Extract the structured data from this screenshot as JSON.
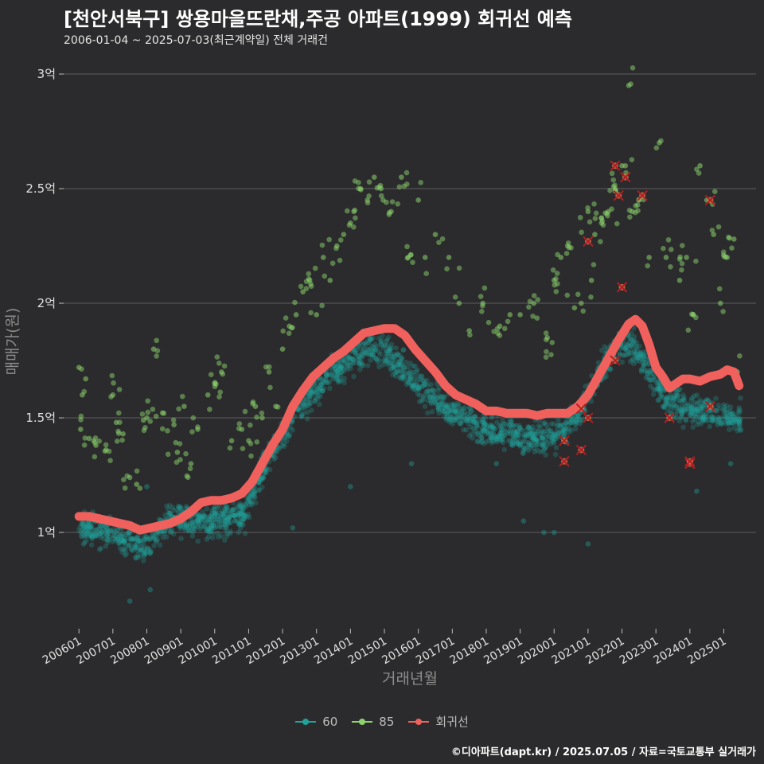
{
  "chart_data": {
    "type": "scatter",
    "title": "[천안서북구] 쌍용마을뜨란채,주공 아파트(1999) 회귀선 예측",
    "subtitle": "2006-01-04 ~ 2025-07-03(최근계약일) 전체 거래건",
    "xlabel": "거래년월",
    "ylabel": "매매가(원)",
    "x_ticks": [
      "200601",
      "200701",
      "200801",
      "200901",
      "201001",
      "201101",
      "201201",
      "201301",
      "201401",
      "201501",
      "201601",
      "201701",
      "201801",
      "201901",
      "202001",
      "202101",
      "202201",
      "202301",
      "202401",
      "202501"
    ],
    "y_ticks": [
      {
        "value": 1.0,
        "label": "1억"
      },
      {
        "value": 1.5,
        "label": "1.5억"
      },
      {
        "value": 2.0,
        "label": "2억"
      },
      {
        "value": 2.5,
        "label": "2.5억"
      },
      {
        "value": 3.0,
        "label": "3억"
      }
    ],
    "x_range": [
      2005.55,
      2025.95
    ],
    "y_range": [
      0.58,
      3.08
    ],
    "y_unit": "억원",
    "grid": true,
    "legend_position": "bottom",
    "series": [
      {
        "name": "60",
        "type": "scatter",
        "color": "#1fa39a",
        "trend": [
          [
            2006.0,
            1.02
          ],
          [
            2007.0,
            1.0
          ],
          [
            2007.9,
            0.93
          ],
          [
            2008.7,
            1.05
          ],
          [
            2009.5,
            1.05
          ],
          [
            2010.3,
            1.05
          ],
          [
            2010.9,
            1.08
          ],
          [
            2011.5,
            1.3
          ],
          [
            2012.5,
            1.55
          ],
          [
            2013.3,
            1.68
          ],
          [
            2014.0,
            1.75
          ],
          [
            2014.5,
            1.8
          ],
          [
            2015.0,
            1.8
          ],
          [
            2015.5,
            1.72
          ],
          [
            2016.2,
            1.62
          ],
          [
            2017.0,
            1.52
          ],
          [
            2018.0,
            1.45
          ],
          [
            2019.0,
            1.42
          ],
          [
            2020.0,
            1.42
          ],
          [
            2020.7,
            1.5
          ],
          [
            2021.3,
            1.68
          ],
          [
            2021.9,
            1.82
          ],
          [
            2022.4,
            1.8
          ],
          [
            2023.0,
            1.65
          ],
          [
            2023.6,
            1.55
          ],
          [
            2024.2,
            1.53
          ],
          [
            2024.8,
            1.52
          ],
          [
            2025.5,
            1.5
          ]
        ],
        "outliers": [
          [
            2007.5,
            0.7
          ],
          [
            2008.1,
            0.75
          ],
          [
            2008.0,
            1.2
          ],
          [
            2012.3,
            1.02
          ],
          [
            2014.0,
            1.2
          ],
          [
            2015.8,
            1.3
          ],
          [
            2018.3,
            1.3
          ],
          [
            2019.1,
            1.05
          ],
          [
            2019.7,
            1.0
          ],
          [
            2020.0,
            1.0
          ],
          [
            2021.0,
            0.95
          ],
          [
            2024.2,
            1.18
          ],
          [
            2025.2,
            1.3
          ]
        ]
      },
      {
        "name": "85",
        "type": "scatter",
        "color": "#8bd36c",
        "points": [
          [
            2006.0,
            1.72
          ],
          [
            2006.05,
            1.45
          ],
          [
            2006.1,
            1.6
          ],
          [
            2006.2,
            1.67
          ],
          [
            2006.3,
            1.41
          ],
          [
            2006.5,
            1.38
          ],
          [
            2006.8,
            1.36
          ],
          [
            2007.0,
            1.6
          ],
          [
            2007.1,
            1.48
          ],
          [
            2007.3,
            1.43
          ],
          [
            2007.5,
            1.24
          ],
          [
            2007.7,
            1.21
          ],
          [
            2007.9,
            1.49
          ],
          [
            2008.0,
            1.5
          ],
          [
            2008.2,
            1.8
          ],
          [
            2008.5,
            1.52
          ],
          [
            2008.8,
            1.47
          ],
          [
            2008.9,
            1.35
          ],
          [
            2009.1,
            1.55
          ],
          [
            2009.3,
            1.3
          ],
          [
            2009.5,
            1.45
          ],
          [
            2009.8,
            1.6
          ],
          [
            2010.0,
            1.65
          ],
          [
            2010.2,
            1.7
          ],
          [
            2010.5,
            1.4
          ],
          [
            2010.8,
            1.45
          ],
          [
            2011.0,
            1.4
          ],
          [
            2011.2,
            1.55
          ],
          [
            2011.4,
            1.5
          ],
          [
            2011.6,
            1.7
          ],
          [
            2011.8,
            1.55
          ],
          [
            2012.0,
            1.8
          ],
          [
            2012.2,
            1.9
          ],
          [
            2012.4,
            1.95
          ],
          [
            2012.6,
            2.05
          ],
          [
            2012.8,
            2.1
          ],
          [
            2013.0,
            1.95
          ],
          [
            2013.2,
            2.2
          ],
          [
            2013.4,
            2.1
          ],
          [
            2013.6,
            2.25
          ],
          [
            2013.8,
            2.3
          ],
          [
            2014.0,
            2.35
          ],
          [
            2014.1,
            2.4
          ],
          [
            2014.3,
            2.5
          ],
          [
            2014.5,
            2.45
          ],
          [
            2014.7,
            2.55
          ],
          [
            2014.9,
            2.5
          ],
          [
            2015.2,
            2.4
          ],
          [
            2015.5,
            2.55
          ],
          [
            2015.7,
            2.2
          ],
          [
            2016.0,
            2.45
          ],
          [
            2016.2,
            2.2
          ],
          [
            2016.5,
            2.3
          ],
          [
            2016.9,
            2.2
          ],
          [
            2017.2,
            2.0
          ],
          [
            2017.5,
            1.88
          ],
          [
            2017.9,
            2.0
          ],
          [
            2018.4,
            1.9
          ],
          [
            2018.7,
            1.95
          ],
          [
            2019.0,
            1.95
          ],
          [
            2019.4,
            2.0
          ],
          [
            2019.8,
            1.85
          ],
          [
            2020.0,
            2.1
          ],
          [
            2020.2,
            2.2
          ],
          [
            2020.4,
            2.25
          ],
          [
            2020.6,
            1.98
          ],
          [
            2020.8,
            2.0
          ],
          [
            2021.0,
            2.4
          ],
          [
            2021.1,
            2.1
          ],
          [
            2021.2,
            2.3
          ],
          [
            2021.4,
            2.35
          ],
          [
            2021.6,
            2.4
          ],
          [
            2021.8,
            2.5
          ],
          [
            2022.0,
            2.6
          ],
          [
            2022.1,
            2.6
          ],
          [
            2022.2,
            2.95
          ],
          [
            2022.3,
            2.4
          ],
          [
            2022.5,
            2.45
          ],
          [
            2022.8,
            2.2
          ],
          [
            2023.1,
            2.7
          ],
          [
            2023.3,
            2.2
          ],
          [
            2023.7,
            2.1
          ],
          [
            2023.9,
            2.2
          ],
          [
            2024.1,
            1.95
          ],
          [
            2024.3,
            2.6
          ],
          [
            2024.5,
            2.45
          ],
          [
            2024.7,
            2.3
          ],
          [
            2024.9,
            2.0
          ],
          [
            2025.1,
            2.2
          ],
          [
            2025.3,
            2.28
          ],
          [
            2025.4,
            1.7
          ]
        ]
      },
      {
        "name": "회귀선",
        "type": "line",
        "color": "#f0605c",
        "points": [
          [
            2006.0,
            1.07
          ],
          [
            2006.3,
            1.07
          ],
          [
            2006.6,
            1.06
          ],
          [
            2006.9,
            1.05
          ],
          [
            2007.2,
            1.04
          ],
          [
            2007.5,
            1.03
          ],
          [
            2007.8,
            1.01
          ],
          [
            2008.1,
            1.02
          ],
          [
            2008.4,
            1.03
          ],
          [
            2008.7,
            1.04
          ],
          [
            2009.0,
            1.06
          ],
          [
            2009.3,
            1.09
          ],
          [
            2009.6,
            1.13
          ],
          [
            2009.9,
            1.14
          ],
          [
            2010.2,
            1.14
          ],
          [
            2010.5,
            1.15
          ],
          [
            2010.8,
            1.17
          ],
          [
            2011.1,
            1.22
          ],
          [
            2011.4,
            1.3
          ],
          [
            2011.7,
            1.38
          ],
          [
            2012.0,
            1.45
          ],
          [
            2012.3,
            1.55
          ],
          [
            2012.6,
            1.62
          ],
          [
            2012.9,
            1.68
          ],
          [
            2013.2,
            1.72
          ],
          [
            2013.5,
            1.76
          ],
          [
            2013.8,
            1.79
          ],
          [
            2014.1,
            1.83
          ],
          [
            2014.4,
            1.87
          ],
          [
            2014.7,
            1.88
          ],
          [
            2015.0,
            1.89
          ],
          [
            2015.3,
            1.89
          ],
          [
            2015.6,
            1.86
          ],
          [
            2015.9,
            1.8
          ],
          [
            2016.2,
            1.75
          ],
          [
            2016.5,
            1.7
          ],
          [
            2016.8,
            1.64
          ],
          [
            2017.1,
            1.6
          ],
          [
            2017.4,
            1.58
          ],
          [
            2017.7,
            1.56
          ],
          [
            2018.0,
            1.53
          ],
          [
            2018.3,
            1.53
          ],
          [
            2018.6,
            1.52
          ],
          [
            2018.9,
            1.52
          ],
          [
            2019.2,
            1.52
          ],
          [
            2019.5,
            1.51
          ],
          [
            2019.8,
            1.52
          ],
          [
            2020.1,
            1.52
          ],
          [
            2020.4,
            1.52
          ],
          [
            2020.7,
            1.55
          ],
          [
            2021.0,
            1.6
          ],
          [
            2021.3,
            1.68
          ],
          [
            2021.6,
            1.76
          ],
          [
            2021.9,
            1.84
          ],
          [
            2022.2,
            1.91
          ],
          [
            2022.4,
            1.93
          ],
          [
            2022.6,
            1.9
          ],
          [
            2022.8,
            1.82
          ],
          [
            2023.0,
            1.72
          ],
          [
            2023.2,
            1.68
          ],
          [
            2023.4,
            1.63
          ],
          [
            2023.6,
            1.65
          ],
          [
            2023.8,
            1.67
          ],
          [
            2024.0,
            1.67
          ],
          [
            2024.3,
            1.66
          ],
          [
            2024.6,
            1.68
          ],
          [
            2024.9,
            1.69
          ],
          [
            2025.1,
            1.71
          ],
          [
            2025.3,
            1.7
          ],
          [
            2025.45,
            1.64
          ]
        ],
        "marked": [
          [
            2021.0,
            2.27
          ],
          [
            2021.8,
            2.6
          ],
          [
            2021.9,
            2.47
          ],
          [
            2022.0,
            2.07
          ],
          [
            2022.1,
            2.55
          ],
          [
            2022.6,
            2.47
          ],
          [
            2024.6,
            2.45
          ],
          [
            2020.3,
            1.4
          ],
          [
            2020.3,
            1.31
          ],
          [
            2020.8,
            1.36
          ],
          [
            2020.8,
            1.54
          ],
          [
            2021.0,
            1.5
          ],
          [
            2021.8,
            1.75
          ],
          [
            2023.4,
            1.5
          ],
          [
            2024.0,
            1.3
          ],
          [
            2024.0,
            1.31
          ],
          [
            2024.6,
            1.55
          ]
        ]
      }
    ]
  },
  "credit": "©디아파트(dapt.kr) / 2025.07.05 / 자료=국토교통부 실거래가"
}
